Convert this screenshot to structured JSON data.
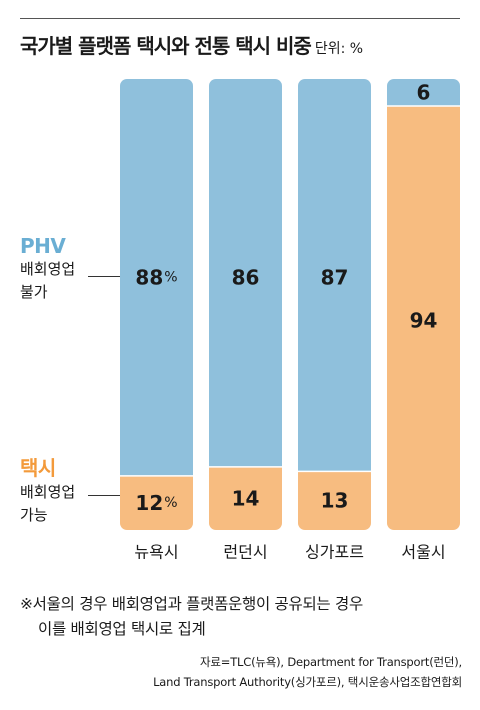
{
  "title": "국가별 플랫폼 택시와 전통 택시 비중",
  "unit": "단위: %",
  "legend": {
    "phv": {
      "name": "PHV",
      "desc": "배회영업 불가",
      "color": "#8fc0dc"
    },
    "taxi": {
      "name": "택시",
      "desc": "배회영업 가능",
      "color": "#f7bc80"
    }
  },
  "chart_data": {
    "type": "bar",
    "stacked": true,
    "categories": [
      "뉴욕시",
      "런던시",
      "싱가포르",
      "서울시"
    ],
    "series": [
      {
        "name": "택시",
        "values": [
          12,
          14,
          13,
          94
        ],
        "labels": [
          "12%",
          "14",
          "13",
          "94"
        ]
      },
      {
        "name": "PHV",
        "values": [
          88,
          86,
          87,
          6
        ],
        "labels": [
          "88%",
          "86",
          "87",
          "6"
        ]
      }
    ],
    "ylim": [
      0,
      100
    ]
  },
  "note": {
    "line1": "※서울의 경우 배회영업과 플랫폼운행이 공유되는 경우",
    "line2": "이를 배회영업 택시로 집계"
  },
  "source": {
    "line1": "자료=TLC(뉴욕), Department for Transport(런던),",
    "line2": "Land Transport Authority(싱가포르), 택시운송사업조합연합회"
  }
}
